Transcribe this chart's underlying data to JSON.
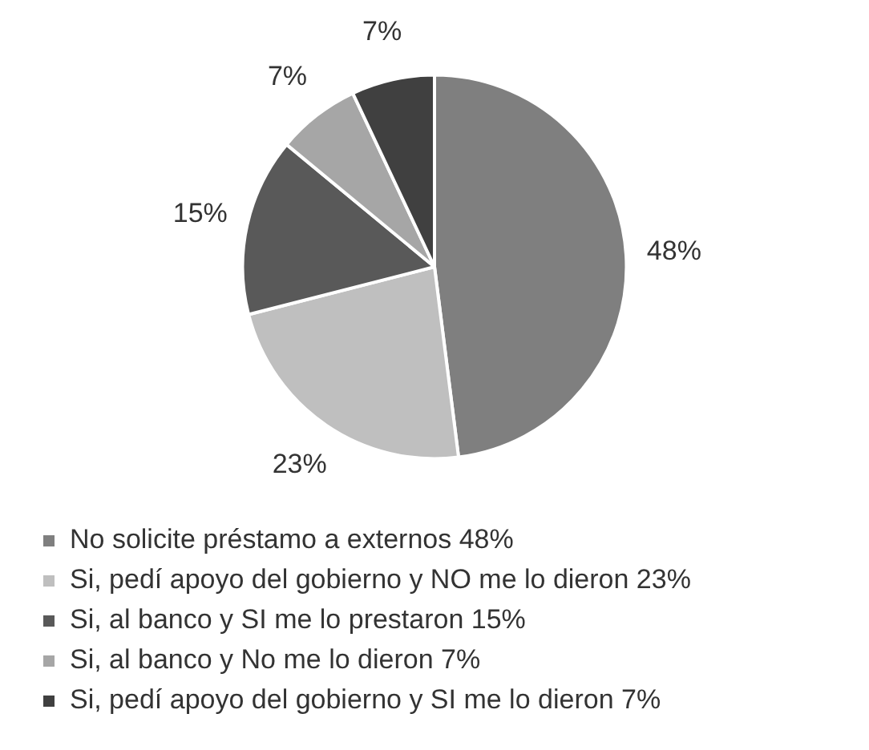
{
  "chart_data": {
    "type": "pie",
    "categories": [
      "No solicite préstamo a externos 48%",
      "Si, pedí apoyo del gobierno y NO me lo dieron 23%",
      "Si, al banco y SI me lo prestaron 15%",
      "Si, al banco y No me lo dieron 7%",
      "Si, pedí apoyo del gobierno y SI me lo dieron 7%"
    ],
    "values": [
      48,
      23,
      15,
      7,
      7
    ],
    "value_labels": [
      "48%",
      "23%",
      "15%",
      "7%",
      "7%"
    ],
    "colors": [
      "#7f7f7f",
      "#bfbfbf",
      "#595959",
      "#a6a6a6",
      "#404040"
    ],
    "legend": "bottom"
  }
}
